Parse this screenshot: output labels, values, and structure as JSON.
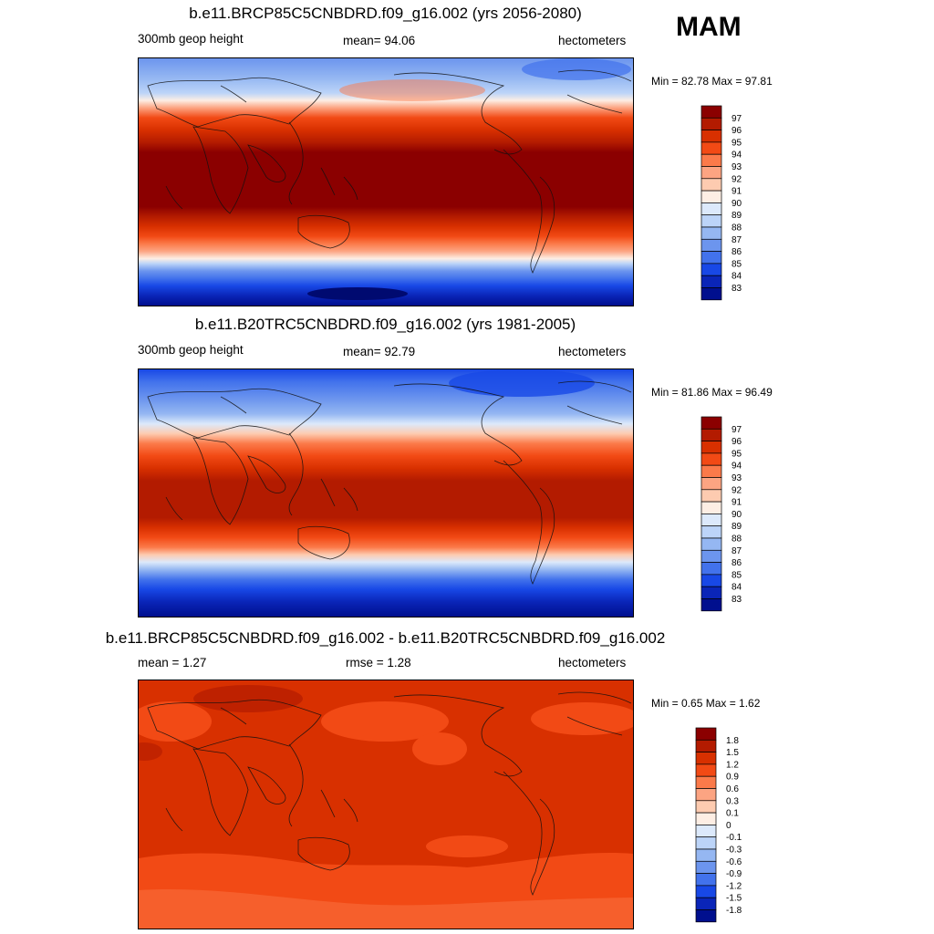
{
  "season": "MAM",
  "panels": [
    {
      "title": "b.e11.BRCP85C5CNBDRD.f09_g16.002 (yrs 2056-2080)",
      "left_label": "300mb geop height",
      "center_label": "mean=  94.06",
      "units": "hectometers",
      "minmax": "Min =  82.78 Max =  97.81",
      "colorbar_labels": [
        "97",
        "96",
        "95",
        "94",
        "93",
        "92",
        "91",
        "90",
        "89",
        "88",
        "87",
        "86",
        "85",
        "84",
        "83"
      ]
    },
    {
      "title": "b.e11.B20TRC5CNBDRD.f09_g16.002 (yrs 1981-2005)",
      "left_label": "300mb geop height",
      "center_label": "mean=  92.79",
      "units": "hectometers",
      "minmax": "Min =  81.86 Max =  96.49",
      "colorbar_labels": [
        "97",
        "96",
        "95",
        "94",
        "93",
        "92",
        "91",
        "90",
        "89",
        "88",
        "87",
        "86",
        "85",
        "84",
        "83"
      ]
    },
    {
      "title": "b.e11.BRCP85C5CNBDRD.f09_g16.002 - b.e11.B20TRC5CNBDRD.f09_g16.002",
      "left_label": "mean =   1.27",
      "center_label": "rmse =   1.28",
      "units": "hectometers",
      "minmax": "Min =   0.65 Max =   1.62",
      "colorbar_labels": [
        "1.8",
        "1.5",
        "1.2",
        "0.9",
        "0.6",
        "0.3",
        "0.1",
        "0",
        "-0.1",
        "-0.3",
        "-0.6",
        "-0.9",
        "-1.2",
        "-1.5",
        "-1.8"
      ]
    }
  ],
  "colors": {
    "colorbar": [
      "#8b0000",
      "#b31b00",
      "#d83000",
      "#f24a15",
      "#fb7a4a",
      "#fca482",
      "#fdcbb0",
      "#fdeee4",
      "#dce9fb",
      "#bcd4f8",
      "#95b7f2",
      "#6c95ee",
      "#4272ec",
      "#1848e6",
      "#0a25b8",
      "#000f8e"
    ]
  }
}
